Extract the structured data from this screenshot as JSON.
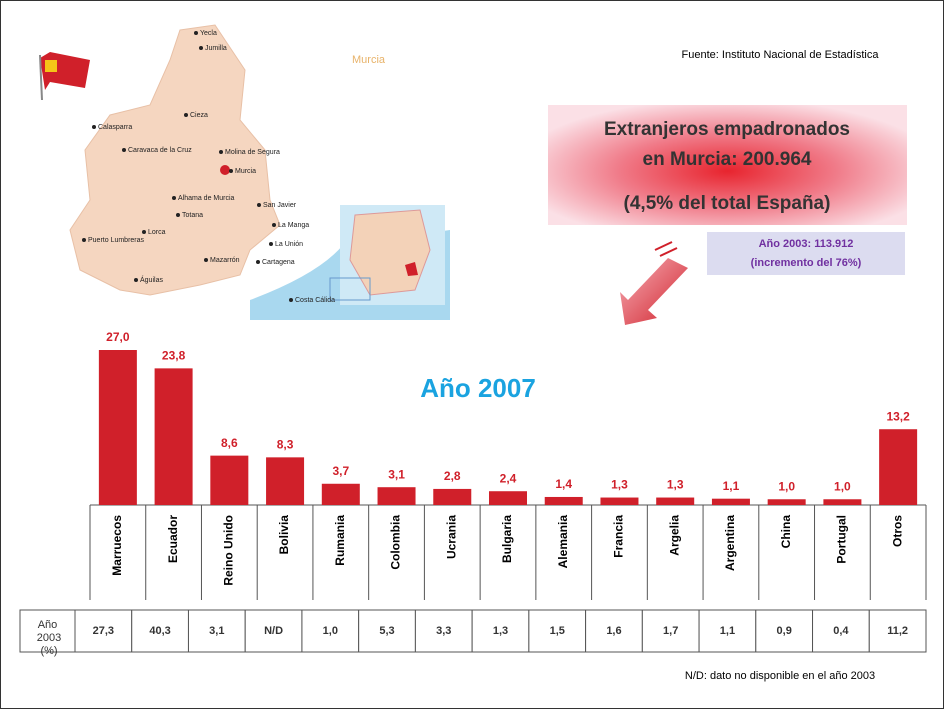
{
  "source": "Fuente: Instituto Nacional de Estadística",
  "headline": [
    "Extranjeros empadronados",
    "en Murcia: 200.964",
    "(4,5% del total España)"
  ],
  "note_2003": [
    "Año 2003: 113.912",
    "(incremento del 76%)"
  ],
  "map": {
    "title": "Murcia",
    "cities": [
      "Yecla",
      "Jumilla",
      "Cieza",
      "Calasparra",
      "Caravaca de la Cruz",
      "Molina de Segura",
      "Murcia",
      "Alhama de Murcia",
      "Totana",
      "Lorca",
      "Puerto Lumbreras",
      "Águilas",
      "Mazarrón",
      "Cartagena",
      "La Unión",
      "La Manga",
      "San Javier",
      "Costa Cálida"
    ]
  },
  "chart_data": {
    "type": "bar",
    "title": "Año 2007",
    "categories": [
      "Marruecos",
      "Ecuador",
      "Reino Unido",
      "Bolivia",
      "Rumania",
      "Colombia",
      "Ucrania",
      "Bulgaria",
      "Alemania",
      "Francia",
      "Argelia",
      "Argentina",
      "China",
      "Portugal",
      "Otros"
    ],
    "values": [
      27.0,
      23.8,
      8.6,
      8.3,
      3.7,
      3.1,
      2.8,
      2.4,
      1.4,
      1.3,
      1.3,
      1.1,
      1.0,
      1.0,
      13.2
    ],
    "value_labels": [
      "27,0",
      "23,8",
      "8,6",
      "8,3",
      "3,7",
      "3,1",
      "2,8",
      "2,4",
      "1,4",
      "1,3",
      "1,3",
      "1,1",
      "1,0",
      "1,0",
      "13,2"
    ],
    "color": "#d0202a"
  },
  "table": {
    "row_header": "Año 2003 (%)",
    "cells": [
      "27,3",
      "40,3",
      "3,1",
      "N/D",
      "1,0",
      "5,3",
      "3,3",
      "1,3",
      "1,5",
      "1,6",
      "1,7",
      "1,1",
      "0,9",
      "0,4",
      "11,2"
    ]
  },
  "footnote": "N/D: dato no disponible en el año 2003"
}
